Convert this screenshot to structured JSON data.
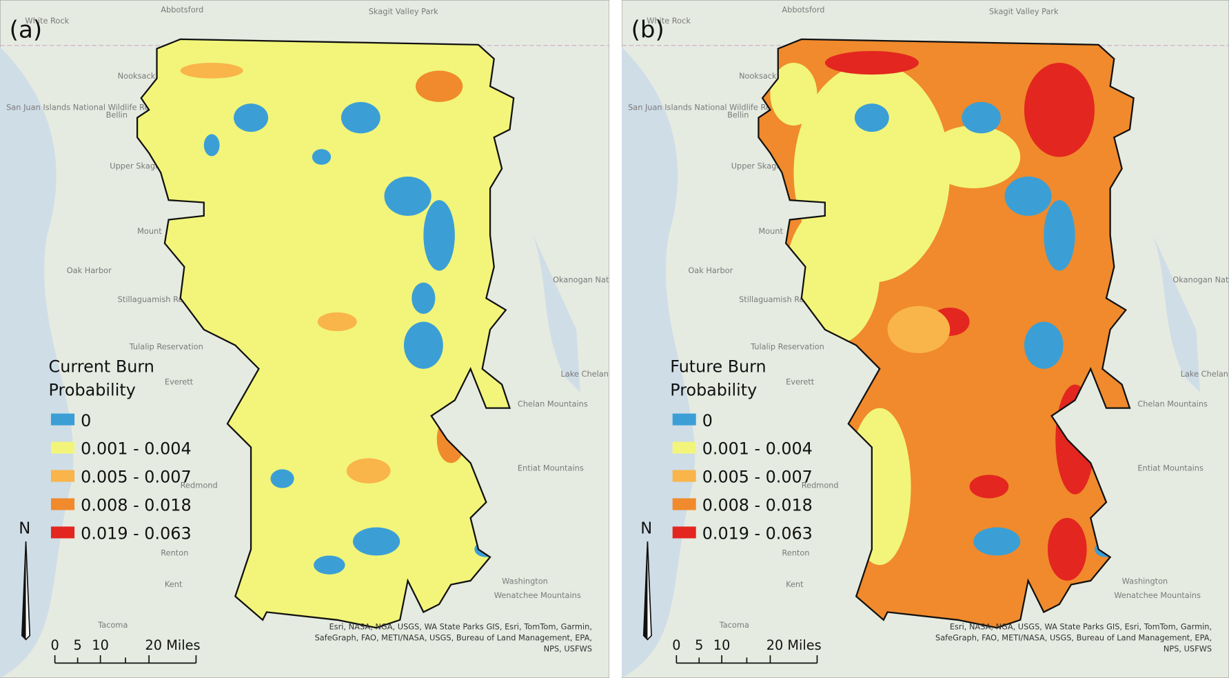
{
  "panels": [
    {
      "label": "(a)",
      "legend": {
        "title": "Current Burn Probability",
        "items": [
          {
            "label": "0",
            "color": "#3b9fd6"
          },
          {
            "label": "0.001 - 0.004",
            "color": "#f2f57a"
          },
          {
            "label": "0.005 - 0.007",
            "color": "#f9b44a"
          },
          {
            "label": "0.008 - 0.018",
            "color": "#f08a2c"
          },
          {
            "label": "0.019 - 0.063",
            "color": "#e3261f"
          }
        ]
      }
    },
    {
      "label": "(b)",
      "legend": {
        "title": "Future Burn Probability",
        "items": [
          {
            "label": "0",
            "color": "#3b9fd6"
          },
          {
            "label": "0.001 - 0.004",
            "color": "#f2f57a"
          },
          {
            "label": "0.005 - 0.007",
            "color": "#f9b44a"
          },
          {
            "label": "0.008 - 0.018",
            "color": "#f08a2c"
          },
          {
            "label": "0.019 - 0.063",
            "color": "#e3261f"
          }
        ]
      }
    }
  ],
  "place_labels": [
    "White Rock",
    "Abbotsford",
    "Skagit Valley Park",
    "Nooksack Reservation",
    "San Juan Islands National Wildlife Refuge",
    "Bellin",
    "Upper Skagit Reservation",
    "Mount",
    "Oak Harbor",
    "Stillaguamish Reservation",
    "Tulalip Reservation",
    "Everett",
    "Redmond",
    "Renton",
    "Kent",
    "Tacoma",
    "Washington",
    "Wenatchee Mountains",
    "Entiat Mountains",
    "Chelan Mountains",
    "Okanogan National Forest",
    "Lake Chelan"
  ],
  "north_label": "N",
  "scale_bar": [
    "0",
    "5",
    "10",
    "20 Miles"
  ],
  "attribution": "Esri, NASA, NGA, USGS, WA State Parks GIS, Esri, TomTom, Garmin, SafeGraph, FAO, METI/NASA, USGS, Bureau of Land Management, EPA, NPS, USFWS"
}
